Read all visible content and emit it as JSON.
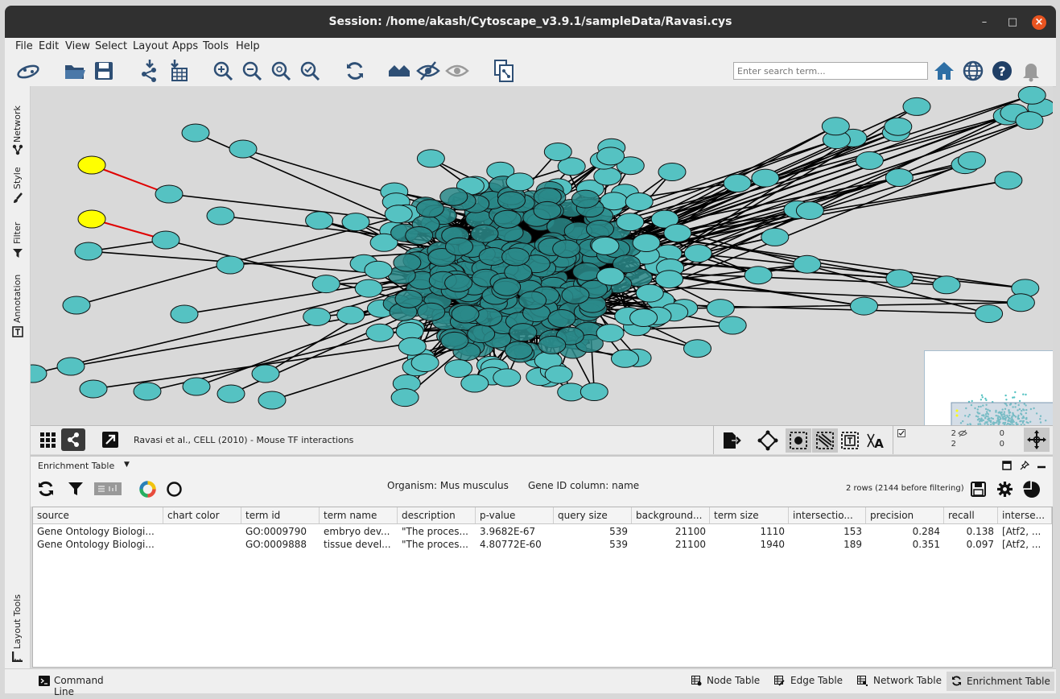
{
  "window": {
    "title": "Session: /home/akash/Cytoscape_v3.9.1/sampleData/Ravasi.cys"
  },
  "menu": [
    "File",
    "Edit",
    "View",
    "Select",
    "Layout",
    "Apps",
    "Tools",
    "Help"
  ],
  "search": {
    "placeholder": "Enter search term..."
  },
  "left_tabs": {
    "network": "Network",
    "style": "Style",
    "filter": "Filter",
    "annotation": "Annotation",
    "layout_tools": "Layout Tools"
  },
  "network": {
    "title": "Ravasi et al., CELL (2010) - Mouse TF interactions",
    "selected_nodes": "2",
    "hidden_nodes": "0",
    "selected_edges": "2",
    "hidden_edges": "0"
  },
  "colors": {
    "node": "#55c2c2",
    "node_dark": "#2a8a8a",
    "selected_node": "#ffff00",
    "selected_edge": "#e00000",
    "canvas": "#d9d9d9"
  },
  "enrichment": {
    "panel_label": "Enrichment Table",
    "organism": "Organism: Mus musculus",
    "gene_id": "Gene ID column: name",
    "row_count": "2 rows (2144 before filtering)",
    "columns": [
      "source",
      "chart color",
      "term id",
      "term name",
      "description",
      "p-value",
      "query size",
      "background...",
      "term size",
      "intersectio...",
      "precision",
      "recall",
      "interse..."
    ],
    "rows": [
      [
        "Gene Ontology Biologi...",
        "",
        "GO:0009790",
        "embryo dev...",
        "\"The proces...",
        "3.9682E-67",
        "539",
        "21100",
        "1110",
        "153",
        "0.284",
        "0.138",
        "[Atf2, ..."
      ],
      [
        "Gene Ontology Biologi...",
        "",
        "GO:0009888",
        "tissue devel...",
        "\"The proces...",
        "4.80772E-60",
        "539",
        "21100",
        "1940",
        "189",
        "0.351",
        "0.097",
        "[Atf2, ..."
      ]
    ]
  },
  "bottom_tabs": {
    "command_line": "Command Line",
    "node_table": "Node Table",
    "edge_table": "Edge Table",
    "network_table": "Network Table",
    "enrichment_table": "Enrichment Table"
  }
}
